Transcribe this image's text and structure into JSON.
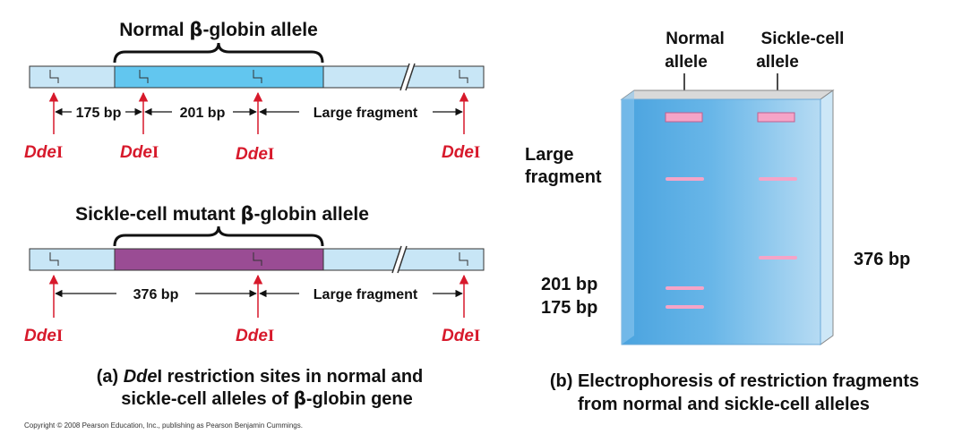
{
  "colors": {
    "flank": "#c8e6f6",
    "normal_gene": "#62c6ef",
    "mutant_gene": "#9a4c94",
    "enzyme": "#d7192b",
    "gel_left": "#5aaee4",
    "gel_right": "#a9d3f0",
    "band": "#f5a4c7"
  },
  "panel_a": {
    "normal": {
      "title_pre": "Normal ",
      "title_greek": "β",
      "title_post": "-globin allele",
      "fragments": [
        "175 bp",
        "201 bp",
        "Large fragment"
      ]
    },
    "mutant": {
      "title_pre": "Sickle-cell mutant ",
      "title_greek": "β",
      "title_post": "-globin allele",
      "fragments": [
        "376 bp",
        "Large fragment"
      ]
    },
    "enzyme": {
      "italic": "Dde",
      "roman": "I"
    },
    "caption": {
      "label": "(a) ",
      "enzyme_italic": "Dde",
      "enzyme_roman": "I",
      "line1_post": " restriction sites in normal and",
      "line2_pre": "sickle-cell alleles of ",
      "line2_greek": "β",
      "line2_post": "-globin gene"
    }
  },
  "panel_b": {
    "lane_labels": {
      "normal": [
        "Normal",
        "allele"
      ],
      "sickle": [
        "Sickle-cell",
        "allele"
      ]
    },
    "band_labels": {
      "large": [
        "Large",
        "fragment"
      ],
      "b201": "201 bp",
      "b175": "175 bp",
      "b376": "376 bp"
    },
    "caption": {
      "line1": "(b) Electrophoresis of restriction fragments",
      "line2": "from normal and sickle-cell alleles"
    }
  },
  "copyright": "Copyright © 2008 Pearson Education, Inc., publishing as Pearson Benjamin Cummings."
}
